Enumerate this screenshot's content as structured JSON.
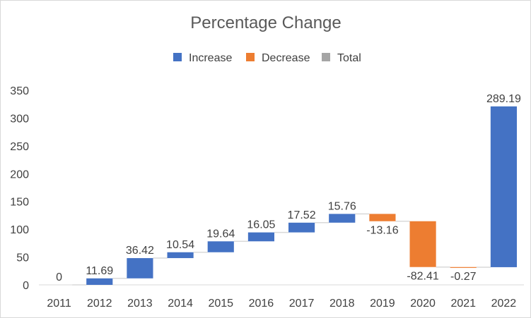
{
  "chart_data": {
    "type": "bar",
    "title": "Percentage Change",
    "categories": [
      "2011",
      "2012",
      "2013",
      "2014",
      "2015",
      "2016",
      "2017",
      "2018",
      "2019",
      "2020",
      "2021",
      "2022"
    ],
    "values": [
      0,
      11.69,
      36.42,
      10.54,
      19.64,
      16.05,
      17.52,
      15.76,
      -13.16,
      -82.41,
      -0.27,
      289.19
    ],
    "data_labels": [
      "0",
      "11.69",
      "36.42",
      "10.54",
      "19.64",
      "16.05",
      "17.52",
      "15.76",
      "-13.16",
      "-82.41",
      "-0.27",
      "289.19"
    ],
    "legend": [
      {
        "name": "Increase",
        "color": "#4472c4"
      },
      {
        "name": "Decrease",
        "color": "#ed7d31"
      },
      {
        "name": "Total",
        "color": "#a5a5a5"
      }
    ],
    "legend_position": "top",
    "ylim": [
      0,
      350
    ],
    "yticks": [
      "0",
      "50",
      "100",
      "150",
      "200",
      "250",
      "300",
      "350"
    ],
    "xlabel": "",
    "ylabel": "",
    "grid": false,
    "connector_color": "#d9d9d9"
  }
}
